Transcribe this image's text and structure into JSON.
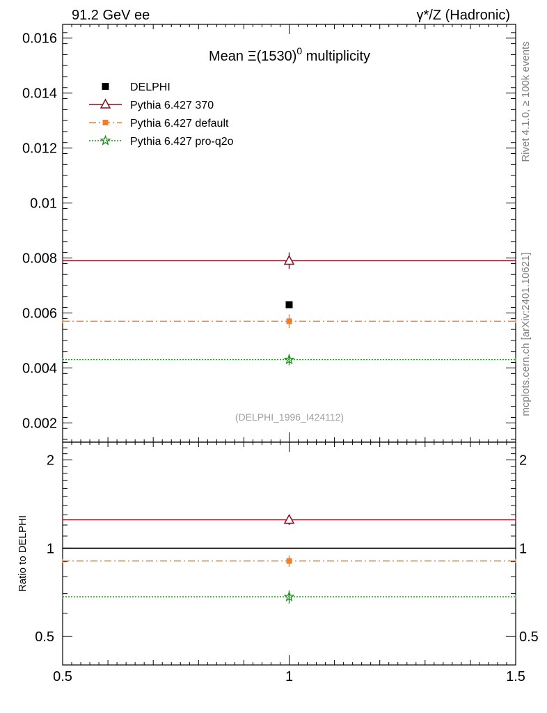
{
  "header": {
    "left": "91.2 GeV ee",
    "right_prefix": "γ*/Z (Hadronic)"
  },
  "side": {
    "rivet": "Rivet 4.1.0, ≥ 100k events",
    "mcplots": "mcplots.cern.ch [arXiv:2401.10621]"
  },
  "chart_data": [
    {
      "type": "scatter",
      "title_pre": "Mean Ξ(1530)",
      "title_sup": "0",
      "title_post": " multiplicity",
      "watermark": "(DELPHI_1996_I424112)",
      "xlim": [
        0.5,
        1.5
      ],
      "ylim": [
        0.0013,
        0.0165
      ],
      "yticks": [
        0.002,
        0.004,
        0.006,
        0.008,
        0.01,
        0.012,
        0.014,
        0.016
      ],
      "ytick_labels": [
        "0.002",
        "0.004",
        "0.006",
        "0.008",
        "0.01",
        "0.012",
        "0.014",
        "0.016"
      ],
      "data": {
        "name": "DELPHI",
        "x": 1,
        "y": 0.0063,
        "color": "#000000"
      },
      "series": [
        {
          "name": "Pythia 6.427 370",
          "y": 0.0079,
          "yerr": 0.0003,
          "color": "#8b0a1e",
          "marker": "triangle",
          "dash": ""
        },
        {
          "name": "Pythia 6.427 default",
          "y": 0.0057,
          "yerr": 0.00025,
          "color": "#f07d28",
          "marker": "square",
          "dash": "10,4,2,4"
        },
        {
          "name": "Pythia 6.427 pro-q2o",
          "y": 0.0043,
          "yerr": 0.0002,
          "color": "#1e8c1e",
          "marker": "star",
          "dash": "2,2"
        }
      ]
    },
    {
      "type": "scatter",
      "ylabel": "Ratio to DELPHI",
      "ylim": [
        0.4,
        2.3
      ],
      "yticks": [
        0.5,
        1,
        2
      ],
      "ytick_labels": [
        "0.5",
        "1",
        "2"
      ],
      "xticks": [
        0.5,
        1,
        1.5
      ],
      "xtick_labels": [
        "0.5",
        "1",
        "1.5"
      ],
      "ratios": [
        {
          "name": "Pythia 6.427 370",
          "y": 1.25,
          "yerr": 0.05
        },
        {
          "name": "Pythia 6.427 default",
          "y": 0.905,
          "yerr": 0.04
        },
        {
          "name": "Pythia 6.427 pro-q2o",
          "y": 0.683,
          "yerr": 0.035
        }
      ]
    }
  ]
}
